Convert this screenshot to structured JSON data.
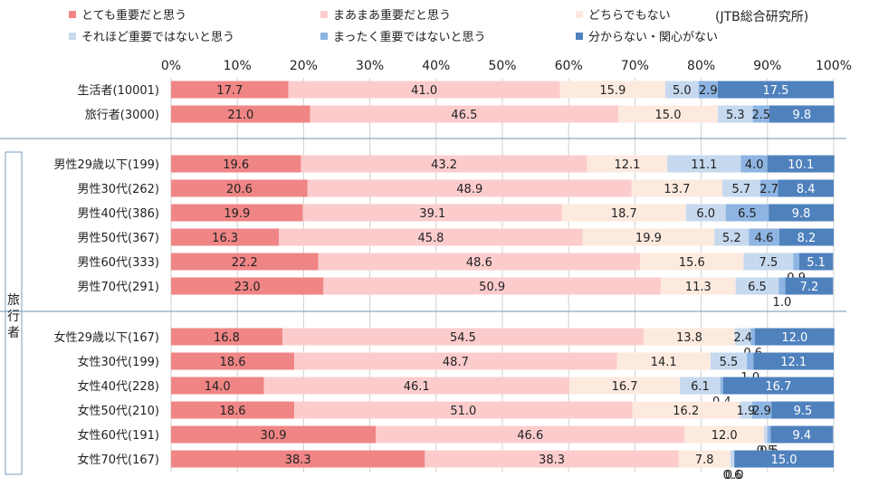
{
  "source_note": "(JTB総合研究所)",
  "side_group_label": "旅行者",
  "chart_data": {
    "type": "bar",
    "orientation": "horizontal",
    "stacked": "percent",
    "title": "",
    "xlabel": "",
    "ylabel": "",
    "xlim": [
      0,
      100
    ],
    "x_ticks": [
      "0%",
      "10%",
      "20%",
      "30%",
      "40%",
      "50%",
      "60%",
      "70%",
      "80%",
      "90%",
      "100%"
    ],
    "grid": "vertical",
    "legend_position": "top",
    "categories": [
      "生活者(10001)",
      "旅行者(3000)",
      "男性29歳以下(199)",
      "男性30代(262)",
      "男性40代(386)",
      "男性50代(367)",
      "男性60代(333)",
      "男性70代(291)",
      "女性29歳以下(167)",
      "女性30代(199)",
      "女性40代(228)",
      "女性50代(210)",
      "女性60代(191)",
      "女性70代(167)"
    ],
    "series": [
      {
        "name": "とても重要だと思う",
        "color": "#f08585",
        "values": [
          17.7,
          21.0,
          19.6,
          20.6,
          19.9,
          16.3,
          22.2,
          23.0,
          16.8,
          18.6,
          14.0,
          18.6,
          30.9,
          38.3
        ]
      },
      {
        "name": "まあまあ重要だと思う",
        "color": "#fccccd",
        "values": [
          41.0,
          46.5,
          43.2,
          48.9,
          39.1,
          45.8,
          48.6,
          50.9,
          54.5,
          48.7,
          46.1,
          51.0,
          46.6,
          38.3
        ]
      },
      {
        "name": "どちらでもない",
        "color": "#fdeadf",
        "values": [
          15.9,
          15.0,
          12.1,
          13.7,
          18.7,
          19.9,
          15.6,
          11.3,
          13.8,
          14.1,
          16.7,
          16.2,
          12.0,
          7.8
        ]
      },
      {
        "name": "それほど重要ではないと思う",
        "color": "#c6d9ef",
        "values": [
          5.0,
          5.3,
          11.1,
          5.7,
          6.0,
          5.2,
          7.5,
          6.5,
          2.4,
          5.5,
          6.1,
          1.9,
          0.5,
          0.6
        ]
      },
      {
        "name": "まったく重要ではないと思う",
        "color": "#8db4e2",
        "values": [
          2.9,
          2.5,
          4.0,
          2.7,
          6.5,
          4.6,
          0.9,
          1.0,
          0.6,
          1.0,
          0.4,
          2.9,
          0.5,
          0.0
        ]
      },
      {
        "name": "分からない・関心がない",
        "color": "#4f81bd",
        "values": [
          17.5,
          9.8,
          10.1,
          8.4,
          9.8,
          8.2,
          5.1,
          7.2,
          12.0,
          12.1,
          16.7,
          9.5,
          9.4,
          15.0
        ]
      }
    ],
    "data_labels": [
      [
        "17.7",
        "41.0",
        "15.9",
        "5.0",
        "2.9",
        "17.5"
      ],
      [
        "21.0",
        "46.5",
        "15.0",
        "5.3",
        "2.5",
        "9.8"
      ],
      [
        "19.6",
        "43.2",
        "12.1",
        "11.1",
        "4.0",
        "10.1"
      ],
      [
        "20.6",
        "48.9",
        "13.7",
        "5.7",
        "2.7",
        "8.4"
      ],
      [
        "19.9",
        "39.1",
        "18.7",
        "6.0",
        "6.5",
        "9.8"
      ],
      [
        "16.3",
        "45.8",
        "19.9",
        "5.2",
        "4.6",
        "8.2"
      ],
      [
        "22.2",
        "48.6",
        "15.6",
        "7.5",
        "0.9",
        "5.1"
      ],
      [
        "23.0",
        "50.9",
        "11.3",
        "6.5",
        "1.0",
        "7.2"
      ],
      [
        "16.8",
        "54.5",
        "13.8",
        "2.4",
        "0.6",
        "12.0"
      ],
      [
        "18.6",
        "48.7",
        "14.1",
        "5.5",
        "1.0",
        "12.1"
      ],
      [
        "14.0",
        "46.1",
        "16.7",
        "6.1",
        "0.4",
        "16.7"
      ],
      [
        "18.6",
        "51.0",
        "16.2",
        "1.9",
        "2.9",
        "9.5"
      ],
      [
        "30.9",
        "46.6",
        "12.0",
        "0.5",
        "0.5",
        "9.4"
      ],
      [
        "38.3",
        "38.3",
        "7.8",
        "0.6",
        "0.0",
        "15.0"
      ]
    ]
  }
}
